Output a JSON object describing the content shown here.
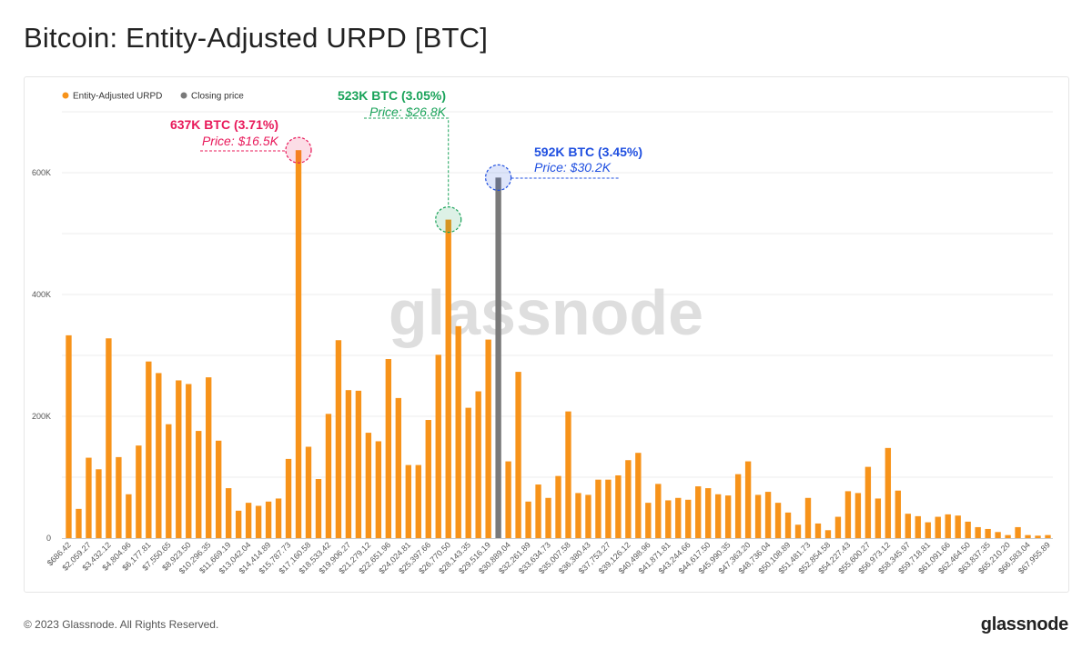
{
  "title": "Bitcoin: Entity-Adjusted URPD [BTC]",
  "footer": {
    "copyright": "© 2023 Glassnode. All Rights Reserved.",
    "brand": "glassnode"
  },
  "watermark": "glassnode",
  "colors": {
    "bars": "#F7931A",
    "closing": "#7a7a7a",
    "annotation_pink": "#e8195a",
    "annotation_green": "#1aa35a",
    "annotation_blue": "#1f4fe0",
    "grid": "#eeeeee"
  },
  "chart_data": {
    "type": "bar",
    "title": "Bitcoin: Entity-Adjusted URPD [BTC]",
    "legend": {
      "placement": "top-left",
      "items": [
        {
          "label": "Entity-Adjusted URPD",
          "color": "#F7931A"
        },
        {
          "label": "Closing price",
          "color": "#7a7a7a"
        }
      ]
    },
    "ylim": [
      0,
      700000
    ],
    "yticks": [
      {
        "value": 0,
        "label": "0"
      },
      {
        "value": 200000,
        "label": "200K"
      },
      {
        "value": 400000,
        "label": "400K"
      },
      {
        "value": 600000,
        "label": "600K"
      }
    ],
    "grid": true,
    "x_tick_labels": [
      "$686.42",
      "$2,059.27",
      "$3,432.12",
      "$4,804.96",
      "$6,177.81",
      "$7,550.65",
      "$8,923.50",
      "$10,296.35",
      "$11,669.19",
      "$13,042.04",
      "$14,414.89",
      "$15,787.73",
      "$17,160.58",
      "$18,533.42",
      "$19,906.27",
      "$21,279.12",
      "$22,651.96",
      "$24,024.81",
      "$25,397.66",
      "$26,770.50",
      "$28,143.35",
      "$29,516.19",
      "$30,889.04",
      "$32,261.89",
      "$33,634.73",
      "$35,007.58",
      "$36,380.43",
      "$37,753.27",
      "$39,126.12",
      "$40,498.96",
      "$41,871.81",
      "$43,244.66",
      "$44,617.50",
      "$45,990.35",
      "$47,363.20",
      "$48,736.04",
      "$50,108.89",
      "$51,481.73",
      "$52,854.58",
      "$54,227.43",
      "$55,600.27",
      "$56,973.12",
      "$58,345.97",
      "$59,718.81",
      "$61,091.66",
      "$62,464.50",
      "$63,837.35",
      "$65,210.20",
      "$66,583.04",
      "$67,955.89"
    ],
    "bar_values": [
      333000,
      48000,
      132000,
      113000,
      328000,
      133000,
      72000,
      152000,
      290000,
      271000,
      187000,
      259000,
      253000,
      176000,
      264000,
      160000,
      82000,
      45000,
      58000,
      53000,
      60000,
      65000,
      130000,
      637000,
      150000,
      97000,
      204000,
      325000,
      243000,
      242000,
      173000,
      159000,
      294000,
      230000,
      120000,
      120000,
      194000,
      301000,
      523000,
      348000,
      214000,
      241000,
      326000,
      0,
      126000,
      273000,
      60000,
      88000,
      66000,
      102000,
      208000,
      74000,
      71000,
      96000,
      96000,
      103000,
      128000,
      140000,
      58000,
      89000,
      62000,
      66000,
      63000,
      85000,
      82000,
      72000,
      70000,
      105000,
      126000,
      71000,
      76000,
      58000,
      42000,
      22000,
      66000,
      24000,
      13000,
      35000,
      77000,
      74000,
      117000,
      65000,
      148000,
      78000,
      40000,
      36000,
      26000,
      35000,
      39000,
      37000,
      27000,
      18000,
      15000,
      10000,
      5000,
      18000,
      5000,
      4000,
      5000
    ],
    "closing_price_bar": {
      "index": 43,
      "value": 592000,
      "label": "Closing price"
    },
    "annotations": [
      {
        "bar_index": 23,
        "value": 637000,
        "title": "637K BTC (3.71%)",
        "subtitle": "Price: $16.5K",
        "color": "#e8195a",
        "side": "left"
      },
      {
        "bar_index": 38,
        "value": 523000,
        "title": "523K BTC (3.05%)",
        "subtitle": "Price: $26.8K",
        "color": "#1aa35a",
        "side": "left"
      },
      {
        "bar_index": 43,
        "value": 592000,
        "title": "592K BTC (3.45%)",
        "subtitle": "Price: $30.2K",
        "color": "#1f4fe0",
        "side": "right"
      }
    ]
  }
}
